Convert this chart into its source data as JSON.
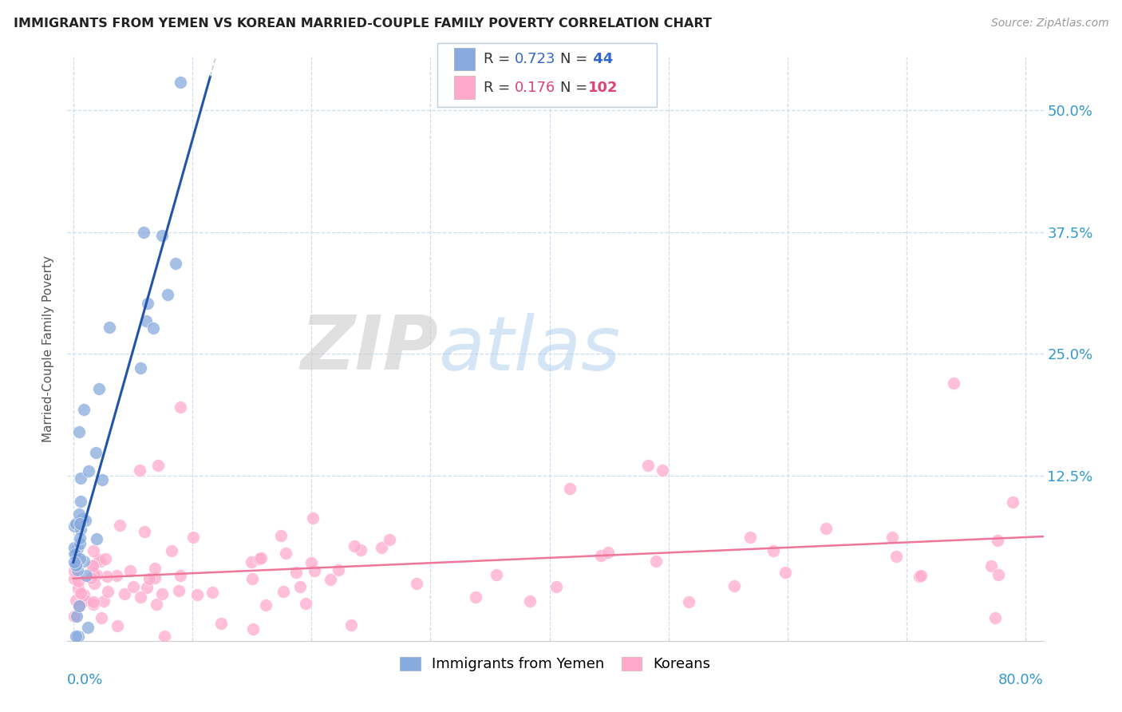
{
  "title": "IMMIGRANTS FROM YEMEN VS KOREAN MARRIED-COUPLE FAMILY POVERTY CORRELATION CHART",
  "source": "Source: ZipAtlas.com",
  "ylabel": "Married-Couple Family Poverty",
  "yticks": [
    "50.0%",
    "37.5%",
    "25.0%",
    "12.5%"
  ],
  "ytick_vals": [
    0.5,
    0.375,
    0.25,
    0.125
  ],
  "xlim": [
    -0.005,
    0.815
  ],
  "ylim": [
    -0.045,
    0.555
  ],
  "legend_label1": "Immigrants from Yemen",
  "legend_label2": "Koreans",
  "R1": "0.723",
  "N1": "44",
  "R2": "0.176",
  "N2": "102",
  "color_blue": "#88AADD",
  "color_pink": "#FFAACC",
  "color_blue_line": "#2255AA",
  "color_pink_line": "#EE7799",
  "color_blue_text": "#3366CC",
  "color_pink_text": "#DD4477",
  "watermark_zip": "#CCCCCC",
  "watermark_atlas": "#AABBDD"
}
